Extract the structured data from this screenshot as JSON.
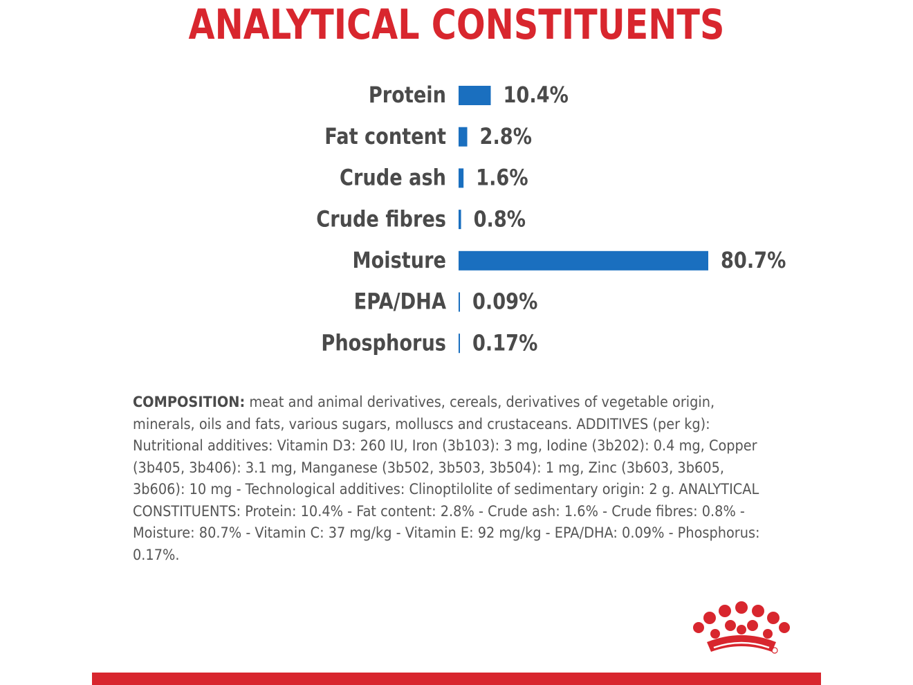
{
  "title": "ANALYTICAL CONSTITUENTS",
  "colors": {
    "title": "#D8262E",
    "bar": "#1A6FBF",
    "label": "#4a4a4a",
    "brand_red": "#D8262E"
  },
  "chart_data": {
    "type": "bar",
    "orientation": "horizontal",
    "categories": [
      "Protein",
      "Fat content",
      "Crude ash",
      "Crude fibres",
      "Moisture",
      "EPA/DHA",
      "Phosphorus"
    ],
    "values": [
      10.4,
      2.8,
      1.6,
      0.8,
      80.7,
      0.09,
      0.17
    ],
    "value_labels": [
      "10.4%",
      "2.8%",
      "1.6%",
      "0.8%",
      "80.7%",
      "0.09%",
      "0.17%"
    ],
    "unit": "%",
    "grid": false,
    "legend": "none"
  },
  "composition": {
    "heading": "COMPOSITION:",
    "text": " meat and animal derivatives, cereals, derivatives of vegetable origin, minerals, oils and fats, various sugars, molluscs and crustaceans. ADDITIVES (per kg): Nutritional additives: Vitamin D3: 260 IU, Iron (3b103): 3 mg, Iodine (3b202): 0.4 mg, Copper (3b405, 3b406): 3.1 mg, Manganese (3b502, 3b503, 3b504): 1 mg, Zinc (3b603, 3b605, 3b606): 10 mg - Technological additives: Clinoptilolite of sedimentary origin: 2 g. ANALYTICAL CONSTITUENTS: Protein: 10.4% - Fat content: 2.8% - Crude ash: 1.6% - Crude fibres: 0.8% - Moisture: 80.7% - Vitamin C: 37 mg/kg - Vitamin E: 92 mg/kg - EPA/DHA: 0.09% - Phosphorus: 0.17%."
  },
  "logo": {
    "icon": "royal-canin-crown-icon"
  }
}
